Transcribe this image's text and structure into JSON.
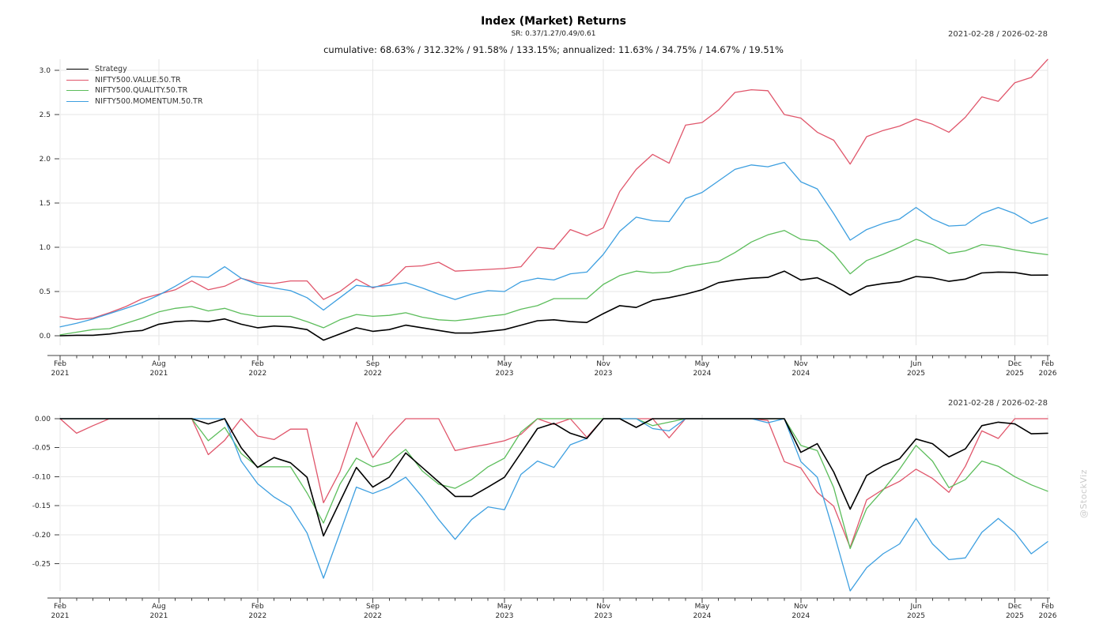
{
  "header": {
    "title": "Index (Market) Returns",
    "subtitle": "SR: 0.37/1.27/0.49/0.61",
    "summary": "cumulative: 68.63% / 312.32% / 91.58% / 133.15%; annualized: 11.63% / 34.75% / 14.67% / 19.51%",
    "date_range": "2021-02-28 / 2026-02-28"
  },
  "watermark": "@StockViz",
  "colors": {
    "strategy": "#000000",
    "value": "#e0566b",
    "quality": "#5cbd5b",
    "momentum": "#3d9fe0",
    "grid": "#e6e6e6",
    "axis": "#404040",
    "watermark_gray": "#c9c9c9"
  },
  "chart_data": [
    {
      "type": "line",
      "name": "cumulative-returns",
      "legend_position": "top-left",
      "grid": true,
      "ylim": [
        -0.06,
        3.17
      ],
      "months": [
        "2021-02",
        "2021-03",
        "2021-04",
        "2021-05",
        "2021-06",
        "2021-07",
        "2021-08",
        "2021-09",
        "2021-10",
        "2021-11",
        "2021-12",
        "2022-01",
        "2022-02",
        "2022-03",
        "2022-04",
        "2022-05",
        "2022-06",
        "2022-07",
        "2022-08",
        "2022-09",
        "2022-10",
        "2022-11",
        "2022-12",
        "2023-01",
        "2023-02",
        "2023-03",
        "2023-04",
        "2023-05",
        "2023-06",
        "2023-07",
        "2023-08",
        "2023-09",
        "2023-10",
        "2023-11",
        "2023-12",
        "2024-01",
        "2024-02",
        "2024-03",
        "2024-04",
        "2024-05",
        "2024-06",
        "2024-07",
        "2024-08",
        "2024-09",
        "2024-10",
        "2024-11",
        "2024-12",
        "2025-01",
        "2025-02",
        "2025-03",
        "2025-04",
        "2025-05",
        "2025-06",
        "2025-07",
        "2025-08",
        "2025-09",
        "2025-10",
        "2025-11",
        "2025-12",
        "2026-01",
        "2026-02"
      ],
      "y_ticks": [
        {
          "value": 0.0,
          "label": "0.0"
        },
        {
          "value": 0.5,
          "label": "0.5"
        },
        {
          "value": 1.0,
          "label": "1.0"
        },
        {
          "value": 1.5,
          "label": "1.5"
        },
        {
          "value": 2.0,
          "label": "2.0"
        },
        {
          "value": 2.5,
          "label": "2.5"
        },
        {
          "value": 3.0,
          "label": "3.0"
        }
      ],
      "x_ticks": [
        {
          "index": 0,
          "line1": "Feb",
          "line2": "2021"
        },
        {
          "index": 6,
          "line1": "Aug",
          "line2": "2021"
        },
        {
          "index": 12,
          "line1": "Feb",
          "line2": "2022"
        },
        {
          "index": 19,
          "line1": "Sep",
          "line2": "2022"
        },
        {
          "index": 27,
          "line1": "May",
          "line2": "2023"
        },
        {
          "index": 33,
          "line1": "Nov",
          "line2": "2023"
        },
        {
          "index": 39,
          "line1": "May",
          "line2": "2024"
        },
        {
          "index": 45,
          "line1": "Nov",
          "line2": "2024"
        },
        {
          "index": 52,
          "line1": "Jun",
          "line2": "2025"
        },
        {
          "index": 58,
          "line1": "Dec",
          "line2": "2025"
        },
        {
          "index": 60,
          "line1": "Feb",
          "line2": "2026"
        }
      ],
      "series": [
        {
          "name": "NIFTY500.VALUE.50.TR",
          "color": "#e0566b",
          "width": 1.3,
          "values": [
            0.215,
            0.185,
            0.2,
            0.26,
            0.33,
            0.42,
            0.47,
            0.52,
            0.62,
            0.52,
            0.56,
            0.65,
            0.6,
            0.59,
            0.62,
            0.62,
            0.41,
            0.5,
            0.64,
            0.54,
            0.6,
            0.78,
            0.79,
            0.83,
            0.73,
            0.74,
            0.75,
            0.76,
            0.78,
            1.0,
            0.98,
            1.2,
            1.13,
            1.22,
            1.63,
            1.88,
            2.05,
            1.95,
            2.38,
            2.41,
            2.55,
            2.75,
            2.78,
            2.77,
            2.5,
            2.46,
            2.3,
            2.21,
            1.94,
            2.25,
            2.32,
            2.37,
            2.45,
            2.39,
            2.3,
            2.47,
            2.7,
            2.65,
            2.86,
            2.92,
            3.123
          ]
        },
        {
          "name": "NIFTY500.QUALITY.50.TR",
          "color": "#5cbd5b",
          "width": 1.3,
          "values": [
            0.01,
            0.04,
            0.07,
            0.08,
            0.14,
            0.2,
            0.27,
            0.31,
            0.33,
            0.28,
            0.31,
            0.25,
            0.22,
            0.22,
            0.22,
            0.16,
            0.09,
            0.18,
            0.24,
            0.22,
            0.23,
            0.26,
            0.21,
            0.18,
            0.17,
            0.19,
            0.22,
            0.24,
            0.3,
            0.34,
            0.42,
            0.42,
            0.42,
            0.58,
            0.68,
            0.73,
            0.71,
            0.72,
            0.78,
            0.81,
            0.84,
            0.94,
            1.06,
            1.14,
            1.19,
            1.09,
            1.07,
            0.93,
            0.7,
            0.85,
            0.92,
            1.0,
            1.09,
            1.03,
            0.93,
            0.96,
            1.03,
            1.01,
            0.97,
            0.94,
            0.916
          ]
        },
        {
          "name": "NIFTY500.MOMENTUM.50.TR",
          "color": "#3d9fe0",
          "width": 1.3,
          "values": [
            0.1,
            0.14,
            0.19,
            0.25,
            0.31,
            0.375,
            0.46,
            0.56,
            0.67,
            0.66,
            0.78,
            0.65,
            0.58,
            0.54,
            0.51,
            0.43,
            0.29,
            0.43,
            0.57,
            0.55,
            0.57,
            0.6,
            0.54,
            0.47,
            0.41,
            0.47,
            0.51,
            0.5,
            0.61,
            0.65,
            0.63,
            0.7,
            0.72,
            0.92,
            1.18,
            1.34,
            1.3,
            1.29,
            1.55,
            1.62,
            1.75,
            1.88,
            1.93,
            1.91,
            1.96,
            1.74,
            1.66,
            1.38,
            1.08,
            1.2,
            1.27,
            1.32,
            1.45,
            1.32,
            1.24,
            1.25,
            1.38,
            1.45,
            1.38,
            1.27,
            1.332
          ]
        },
        {
          "name": "Strategy",
          "color": "#000000",
          "width": 1.6,
          "values": [
            0.0,
            0.005,
            0.005,
            0.02,
            0.045,
            0.06,
            0.13,
            0.16,
            0.17,
            0.16,
            0.19,
            0.13,
            0.09,
            0.11,
            0.1,
            0.07,
            -0.05,
            0.02,
            0.09,
            0.05,
            0.07,
            0.12,
            0.09,
            0.06,
            0.03,
            0.03,
            0.05,
            0.07,
            0.12,
            0.17,
            0.18,
            0.16,
            0.15,
            0.25,
            0.34,
            0.32,
            0.4,
            0.43,
            0.47,
            0.52,
            0.6,
            0.63,
            0.65,
            0.66,
            0.73,
            0.63,
            0.655,
            0.57,
            0.46,
            0.56,
            0.59,
            0.61,
            0.67,
            0.655,
            0.615,
            0.64,
            0.71,
            0.72,
            0.715,
            0.685,
            0.686
          ]
        }
      ],
      "legend_order": [
        "Strategy",
        "NIFTY500.VALUE.50.TR",
        "NIFTY500.QUALITY.50.TR",
        "NIFTY500.MOMENTUM.50.TR"
      ]
    },
    {
      "type": "line",
      "name": "drawdowns",
      "grid": true,
      "ylim": [
        -0.305,
        0.005
      ],
      "months": [
        "2021-02",
        "2021-03",
        "2021-04",
        "2021-05",
        "2021-06",
        "2021-07",
        "2021-08",
        "2021-09",
        "2021-10",
        "2021-11",
        "2021-12",
        "2022-01",
        "2022-02",
        "2022-03",
        "2022-04",
        "2022-05",
        "2022-06",
        "2022-07",
        "2022-08",
        "2022-09",
        "2022-10",
        "2022-11",
        "2022-12",
        "2023-01",
        "2023-02",
        "2023-03",
        "2023-04",
        "2023-05",
        "2023-06",
        "2023-07",
        "2023-08",
        "2023-09",
        "2023-10",
        "2023-11",
        "2023-12",
        "2024-01",
        "2024-02",
        "2024-03",
        "2024-04",
        "2024-05",
        "2024-06",
        "2024-07",
        "2024-08",
        "2024-09",
        "2024-10",
        "2024-11",
        "2024-12",
        "2025-01",
        "2025-02",
        "2025-03",
        "2025-04",
        "2025-05",
        "2025-06",
        "2025-07",
        "2025-08",
        "2025-09",
        "2025-10",
        "2025-11",
        "2025-12",
        "2026-01",
        "2026-02"
      ],
      "y_ticks": [
        {
          "value": 0.0,
          "label": "0.00"
        },
        {
          "value": -0.05,
          "label": "-0.05"
        },
        {
          "value": -0.1,
          "label": "-0.10"
        },
        {
          "value": -0.15,
          "label": "-0.15"
        },
        {
          "value": -0.2,
          "label": "-0.20"
        },
        {
          "value": -0.25,
          "label": "-0.25"
        }
      ],
      "x_ticks": [
        {
          "index": 0,
          "line1": "Feb",
          "line2": "2021"
        },
        {
          "index": 6,
          "line1": "Aug",
          "line2": "2021"
        },
        {
          "index": 12,
          "line1": "Feb",
          "line2": "2022"
        },
        {
          "index": 19,
          "line1": "Sep",
          "line2": "2022"
        },
        {
          "index": 27,
          "line1": "May",
          "line2": "2023"
        },
        {
          "index": 33,
          "line1": "Nov",
          "line2": "2023"
        },
        {
          "index": 39,
          "line1": "May",
          "line2": "2024"
        },
        {
          "index": 45,
          "line1": "Nov",
          "line2": "2024"
        },
        {
          "index": 52,
          "line1": "Jun",
          "line2": "2025"
        },
        {
          "index": 58,
          "line1": "Dec",
          "line2": "2025"
        },
        {
          "index": 60,
          "line1": "Feb",
          "line2": "2026"
        }
      ],
      "series": [
        {
          "name": "NIFTY500.VALUE.50.TR",
          "color": "#e0566b",
          "width": 1.3,
          "values": [
            0,
            -0.025,
            -0.012,
            0,
            0,
            0,
            0,
            0,
            0,
            -0.062,
            -0.037,
            0,
            -0.03,
            -0.036,
            -0.018,
            -0.018,
            -0.145,
            -0.091,
            -0.006,
            -0.067,
            -0.03,
            0,
            0,
            0,
            -0.055,
            -0.049,
            -0.044,
            -0.038,
            -0.027,
            0,
            -0.01,
            0,
            -0.032,
            0,
            0,
            0,
            0,
            -0.033,
            0,
            0,
            0,
            0,
            0,
            -0.003,
            -0.074,
            -0.085,
            -0.127,
            -0.151,
            -0.222,
            -0.14,
            -0.122,
            -0.108,
            -0.087,
            -0.103,
            -0.127,
            -0.082,
            -0.021,
            -0.034,
            0,
            0,
            0
          ]
        },
        {
          "name": "NIFTY500.QUALITY.50.TR",
          "color": "#5cbd5b",
          "width": 1.3,
          "values": [
            0,
            0,
            0,
            0,
            0,
            0,
            0,
            0,
            0,
            -0.038,
            -0.015,
            -0.06,
            -0.083,
            -0.083,
            -0.083,
            -0.128,
            -0.18,
            -0.113,
            -0.068,
            -0.083,
            -0.075,
            -0.053,
            -0.09,
            -0.113,
            -0.12,
            -0.105,
            -0.083,
            -0.068,
            -0.023,
            0,
            0,
            0,
            0,
            0,
            0,
            0,
            -0.012,
            -0.006,
            0,
            0,
            0,
            0,
            0,
            0,
            0,
            -0.046,
            -0.055,
            -0.119,
            -0.224,
            -0.155,
            -0.123,
            -0.087,
            -0.046,
            -0.073,
            -0.119,
            -0.105,
            -0.073,
            -0.082,
            -0.1,
            -0.114,
            -0.125
          ]
        },
        {
          "name": "NIFTY500.MOMENTUM.50.TR",
          "color": "#3d9fe0",
          "width": 1.3,
          "values": [
            0,
            0,
            0,
            0,
            0,
            0,
            0,
            0,
            0,
            0,
            0,
            -0.073,
            -0.112,
            -0.135,
            -0.152,
            -0.197,
            -0.275,
            -0.197,
            -0.118,
            -0.129,
            -0.118,
            -0.101,
            -0.135,
            -0.174,
            -0.208,
            -0.174,
            -0.152,
            -0.157,
            -0.096,
            -0.073,
            -0.084,
            -0.045,
            -0.034,
            0,
            0,
            0,
            -0.017,
            -0.021,
            0,
            0,
            0,
            0,
            0,
            -0.007,
            0,
            -0.074,
            -0.101,
            -0.196,
            -0.297,
            -0.257,
            -0.233,
            -0.216,
            -0.172,
            -0.216,
            -0.243,
            -0.24,
            -0.196,
            -0.172,
            -0.196,
            -0.233,
            -0.212
          ]
        },
        {
          "name": "Strategy",
          "color": "#000000",
          "width": 1.6,
          "values": [
            0,
            0,
            0,
            0,
            0,
            0,
            0,
            0,
            0,
            -0.009,
            0,
            -0.05,
            -0.084,
            -0.067,
            -0.076,
            -0.101,
            -0.202,
            -0.143,
            -0.084,
            -0.118,
            -0.101,
            -0.059,
            -0.084,
            -0.109,
            -0.134,
            -0.134,
            -0.118,
            -0.101,
            -0.059,
            -0.017,
            -0.008,
            -0.025,
            -0.034,
            0,
            0,
            -0.015,
            0,
            0,
            0,
            0,
            0,
            0,
            0,
            0,
            0,
            -0.058,
            -0.043,
            -0.092,
            -0.156,
            -0.098,
            -0.081,
            -0.069,
            -0.035,
            -0.043,
            -0.066,
            -0.052,
            -0.012,
            -0.006,
            -0.009,
            -0.026,
            -0.025
          ]
        }
      ]
    }
  ]
}
